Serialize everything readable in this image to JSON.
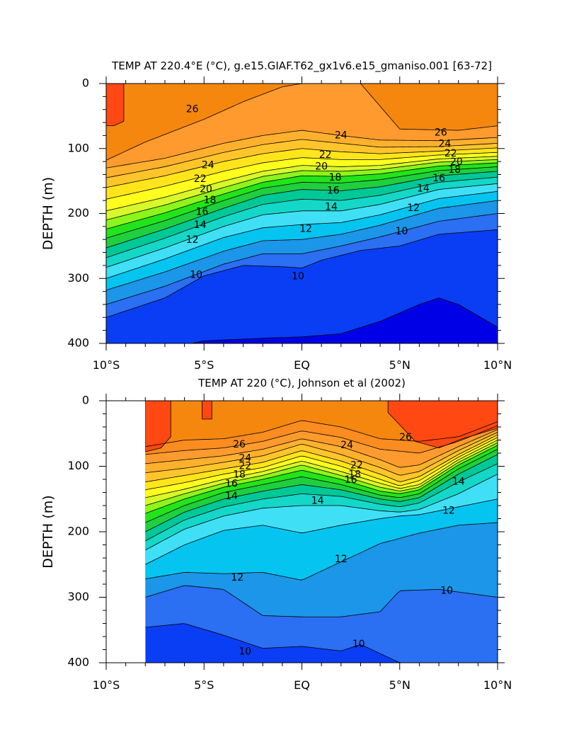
{
  "chart_data": [
    {
      "type": "contour",
      "title": "TEMP AT 220.4°E (°C), g.e15.GIAF.T62_gx1v6.e15_gmaniso.001 [63-72]",
      "xlabel": "",
      "ylabel": "DEPTH (m)",
      "xlim": [
        -10,
        10
      ],
      "ylim": [
        400,
        0
      ],
      "x_tick_values": [
        -10,
        -5,
        0,
        5,
        10
      ],
      "x_tick_labels": [
        "10°S",
        "5°S",
        "EQ",
        "5°N",
        "10°N"
      ],
      "y_tick_values": [
        0,
        100,
        200,
        300,
        400
      ],
      "y_tick_labels": [
        "0",
        "100",
        "200",
        "300",
        "400"
      ],
      "data_xmin": -10,
      "data_xmax": 10,
      "contour_labels": [
        {
          "text": "26",
          "x": -5.6,
          "y": 40
        },
        {
          "text": "26",
          "x": 7.1,
          "y": 76
        },
        {
          "text": "24",
          "x": 2.0,
          "y": 80
        },
        {
          "text": "24",
          "x": 7.3,
          "y": 93
        },
        {
          "text": "22",
          "x": 1.2,
          "y": 110
        },
        {
          "text": "22",
          "x": 7.6,
          "y": 108
        },
        {
          "text": "20",
          "x": 1.0,
          "y": 128
        },
        {
          "text": "20",
          "x": 7.9,
          "y": 121
        },
        {
          "text": "18",
          "x": 1.7,
          "y": 145
        },
        {
          "text": "18",
          "x": 7.8,
          "y": 133
        },
        {
          "text": "16",
          "x": 1.6,
          "y": 165
        },
        {
          "text": "16",
          "x": 7.0,
          "y": 146
        },
        {
          "text": "14",
          "x": 1.5,
          "y": 190
        },
        {
          "text": "14",
          "x": 6.2,
          "y": 162
        },
        {
          "text": "12",
          "x": 0.2,
          "y": 224
        },
        {
          "text": "12",
          "x": 5.7,
          "y": 192
        },
        {
          "text": "10",
          "x": 5.1,
          "y": 228
        },
        {
          "text": "10",
          "x": -5.4,
          "y": 295
        },
        {
          "text": "10",
          "x": -0.2,
          "y": 297
        },
        {
          "text": "24",
          "x": -4.8,
          "y": 126
        },
        {
          "text": "22",
          "x": -5.2,
          "y": 147
        },
        {
          "text": "20",
          "x": -4.9,
          "y": 163
        },
        {
          "text": "18",
          "x": -4.7,
          "y": 180
        },
        {
          "text": "16",
          "x": -5.1,
          "y": 198
        },
        {
          "text": "14",
          "x": -5.2,
          "y": 218
        },
        {
          "text": "12",
          "x": -5.6,
          "y": 241
        }
      ]
    },
    {
      "type": "contour",
      "title": "TEMP AT 220 (°C), Johnson et al (2002)",
      "xlabel": "",
      "ylabel": "DEPTH (m)",
      "xlim": [
        -10,
        10
      ],
      "ylim": [
        400,
        0
      ],
      "x_tick_values": [
        -10,
        -5,
        0,
        5,
        10
      ],
      "x_tick_labels": [
        "10°S",
        "5°S",
        "EQ",
        "5°N",
        "10°N"
      ],
      "y_tick_values": [
        0,
        100,
        200,
        300,
        400
      ],
      "y_tick_labels": [
        "0",
        "100",
        "200",
        "300",
        "400"
      ],
      "data_xmin": -8,
      "data_xmax": 10,
      "contour_labels": [
        {
          "text": "26",
          "x": -3.2,
          "y": 67
        },
        {
          "text": "26",
          "x": 5.3,
          "y": 56
        },
        {
          "text": "24",
          "x": 2.3,
          "y": 68
        },
        {
          "text": "24",
          "x": -2.9,
          "y": 88
        },
        {
          "text": "22",
          "x": 2.8,
          "y": 99
        },
        {
          "text": "22",
          "x": -2.9,
          "y": 100
        },
        {
          "text": "18",
          "x": -3.2,
          "y": 113
        },
        {
          "text": "18",
          "x": 2.7,
          "y": 113
        },
        {
          "text": "16",
          "x": -3.6,
          "y": 127
        },
        {
          "text": "16",
          "x": 2.5,
          "y": 121
        },
        {
          "text": "14",
          "x": -3.6,
          "y": 146
        },
        {
          "text": "14",
          "x": 0.8,
          "y": 153
        },
        {
          "text": "14",
          "x": 8.0,
          "y": 124
        },
        {
          "text": "12",
          "x": 7.5,
          "y": 168
        },
        {
          "text": "12",
          "x": -3.3,
          "y": 270
        },
        {
          "text": "12",
          "x": 2.0,
          "y": 242
        },
        {
          "text": "10",
          "x": 7.4,
          "y": 290
        },
        {
          "text": "10",
          "x": -2.9,
          "y": 383
        },
        {
          "text": "10",
          "x": 2.9,
          "y": 372
        }
      ]
    }
  ],
  "colors": {
    "c8": "#0000e6",
    "c9": "#0a3ef5",
    "c10": "#2b6ff2",
    "c11": "#1b96e8",
    "c12": "#05c4f0",
    "c13": "#3fe0f5",
    "c14": "#14d7c8",
    "c15": "#00c896",
    "c16": "#1fcf3e",
    "c17": "#22e41a",
    "c18": "#8cf51b",
    "c19": "#d8f82a",
    "c20": "#ffff1e",
    "c21": "#ffe51a",
    "c22": "#ffc52a",
    "c23": "#ffb12e",
    "c24": "#ff9b2e",
    "c25": "#fa8c20",
    "c26": "#f5870e",
    "c27": "#ff4812"
  }
}
